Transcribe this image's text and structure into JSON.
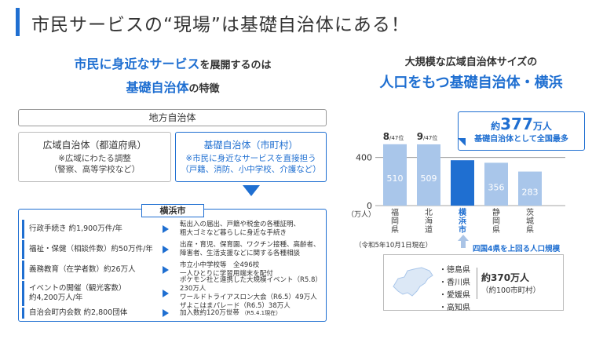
{
  "title": "市民サービスの“現場”は基礎自治体にある！",
  "left_heading": {
    "line1_blue": "市民に身近なサービス",
    "line1_rest": "を展開するのは",
    "line2_blue": "基礎自治体",
    "line2_rest": "の特徴"
  },
  "chiho": "地方自治体",
  "koiki": {
    "main": "広域自治体（都道府県）",
    "sub1": "※広域にわたる調整",
    "sub2": "（警察、高等学校など）"
  },
  "kiso": {
    "main": "基礎自治体",
    "paren": "（市町村）",
    "sub1": "※市民に身近なサービスを直接担う",
    "sub2": "（戸籍、消防、小中学校、介護など）"
  },
  "yokohama_label": "横浜市",
  "rows": [
    {
      "left1": "行政手続き 約1,900万件/年",
      "left2": "",
      "right1": "転出入の届出、戸籍や税金の各種証明、",
      "right2": "粗大ゴミなど暮らしに身近な手続き",
      "right3": ""
    },
    {
      "left1": "福祉・保健（相談件数）約50万件/年",
      "left2": "",
      "right1": "出産・育児、保育園、ワクチン接種、高齢者、",
      "right2": "障害者、生活支援などに関する各種相談",
      "right3": ""
    },
    {
      "left1": "義務教育（在学者数）約26万人",
      "left2": "",
      "right1": "市立小中学校等　全496校",
      "right2": "一人ひとりに学習用端末を配付",
      "right3": ""
    },
    {
      "left1": "イベントの開催（観光客数）",
      "left2": "約4,200万人/年",
      "right1": "ポケモン社と連携した大規模イベント（R5.8）230万人",
      "right2": "ワールドトライアスロン大会（R6.5）49万人",
      "right3": "ザよこはまパレード（R6.5）38万人"
    },
    {
      "left1": "自治会町内会数 約2,800団体",
      "left2": "",
      "right1": "加入数約120万世帯",
      "right2": "（R5.4.1現在）",
      "right3": ""
    }
  ],
  "right_heading": {
    "line1": "大規模な広域自治体サイズの",
    "line2": "人口をもつ基礎自治体・横浜"
  },
  "callout": {
    "prefix": "約",
    "number": "377",
    "unit": "万人",
    "line2": "基礎自治体として全国最多"
  },
  "chart_data": {
    "type": "bar",
    "categories": [
      "福岡県",
      "北海道",
      "横浜市",
      "静岡県",
      "茨城県"
    ],
    "values": [
      510,
      509,
      377,
      356,
      283
    ],
    "data_labels": [
      "510",
      "509",
      "",
      "356",
      "283"
    ],
    "ranks": [
      {
        "category": "福岡県",
        "rank": "8",
        "suffix": "/47位"
      },
      {
        "category": "北海道",
        "rank": "9",
        "suffix": "/47位"
      }
    ],
    "y_ticks": [
      0,
      400
    ],
    "ylabel": "（万人）",
    "ylim": [
      0,
      600
    ],
    "highlight": "横浜市",
    "colors": {
      "normal": "#a9c6ea",
      "highlight": "#1f6fd1"
    }
  },
  "note": "（令和5年10月1日現在）",
  "yonkoku": "四国4県を上回る人口規模",
  "shikoku": {
    "prefectures": [
      "・徳島県",
      "・香川県",
      "・愛媛県",
      "・高知県"
    ],
    "total": "約370万人",
    "municipalities": "（約100市町村）"
  }
}
